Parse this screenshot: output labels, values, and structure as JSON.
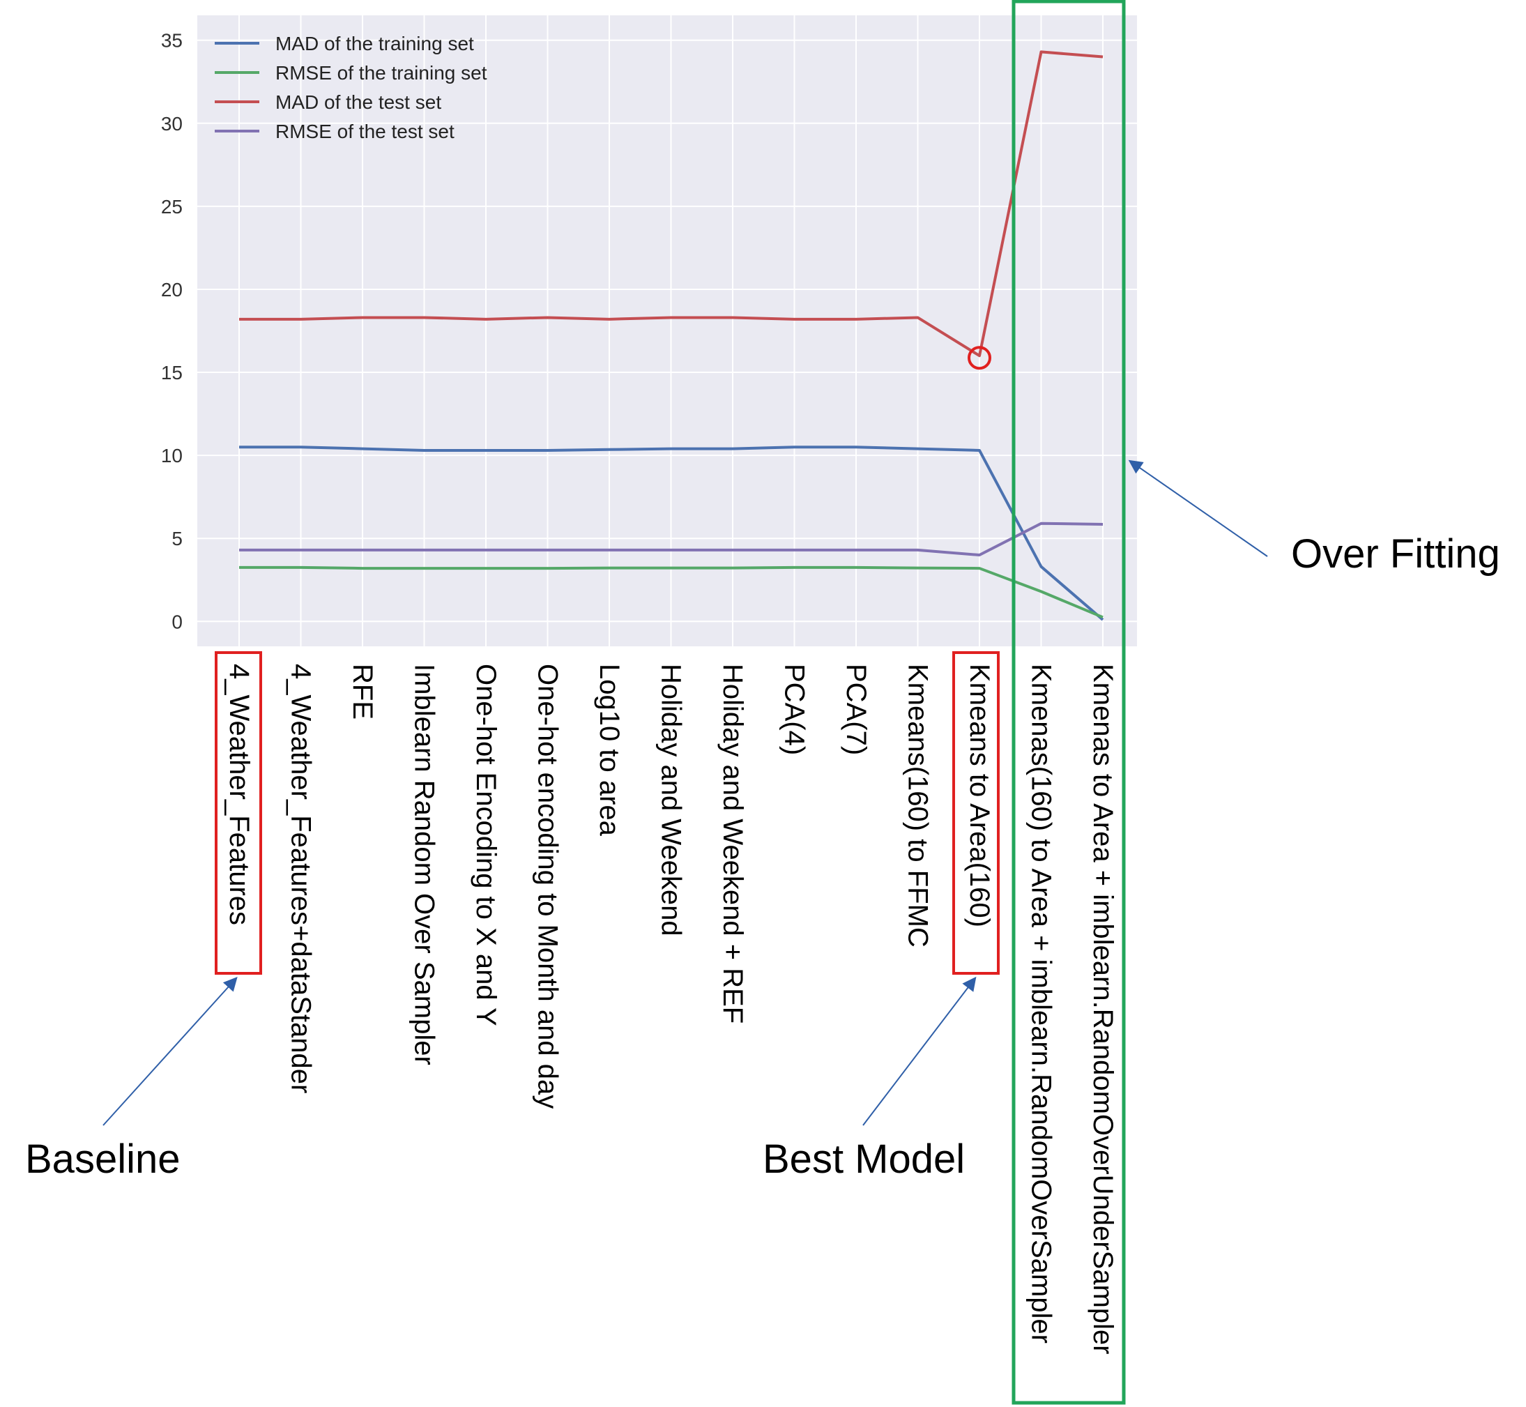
{
  "chart_data": {
    "type": "line",
    "title": "",
    "xlabel": "",
    "ylabel": "",
    "ylim": [
      -1.5,
      36.5
    ],
    "yticks": [
      0,
      5,
      10,
      15,
      20,
      25,
      30,
      35
    ],
    "grid": true,
    "legend_position": "top-left",
    "categories": [
      "4_Weather_Features",
      "4_Weather_Features+dataStander",
      "RFE",
      "Imblearn Random Over Sampler",
      "One-hot Encoding to X and Y",
      "One-hot encoding to Month and day",
      "Log10 to area",
      "Holiday and Weekend",
      "Holiday and Weekend + REF",
      "PCA(4)",
      "PCA(7)",
      "Kmeans(160) to FFMC",
      "Kmeans to Area(160)",
      "Kmenas(160) to Area + imblearn.RandomOverSampler",
      "Kmenas to Area + imblearn.RandomOverUnderSampler"
    ],
    "series": [
      {
        "name": "MAD of the training set",
        "color": "#4c72b0",
        "values": [
          10.5,
          10.5,
          10.4,
          10.3,
          10.3,
          10.3,
          10.35,
          10.4,
          10.4,
          10.5,
          10.5,
          10.4,
          10.3,
          3.3,
          0.1
        ]
      },
      {
        "name": "RMSE of the training set",
        "color": "#55a868",
        "values": [
          3.25,
          3.25,
          3.2,
          3.2,
          3.2,
          3.2,
          3.22,
          3.22,
          3.22,
          3.25,
          3.25,
          3.22,
          3.2,
          1.8,
          0.25
        ]
      },
      {
        "name": "MAD of the test set",
        "color": "#c44e52",
        "values": [
          18.2,
          18.2,
          18.3,
          18.3,
          18.2,
          18.3,
          18.2,
          18.3,
          18.3,
          18.2,
          18.2,
          18.3,
          16.0,
          34.3,
          34.0
        ]
      },
      {
        "name": "RMSE of the test set",
        "color": "#8172b2",
        "values": [
          4.3,
          4.3,
          4.3,
          4.3,
          4.3,
          4.3,
          4.3,
          4.3,
          4.3,
          4.3,
          4.3,
          4.3,
          4.0,
          5.9,
          5.85
        ]
      }
    ],
    "annotations": [
      {
        "text": "Baseline",
        "target_category_index": 0
      },
      {
        "text": "Best Model",
        "target_category_index": 12
      },
      {
        "text": "Over Fitting",
        "target_category_range": [
          13,
          14
        ]
      }
    ]
  },
  "colors": {
    "plot_background": "#eaeaf2",
    "grid": "#ffffff",
    "highlight_box": "#e02020",
    "overfit_box": "#22a55a",
    "arrow": "#2f5fa8"
  }
}
